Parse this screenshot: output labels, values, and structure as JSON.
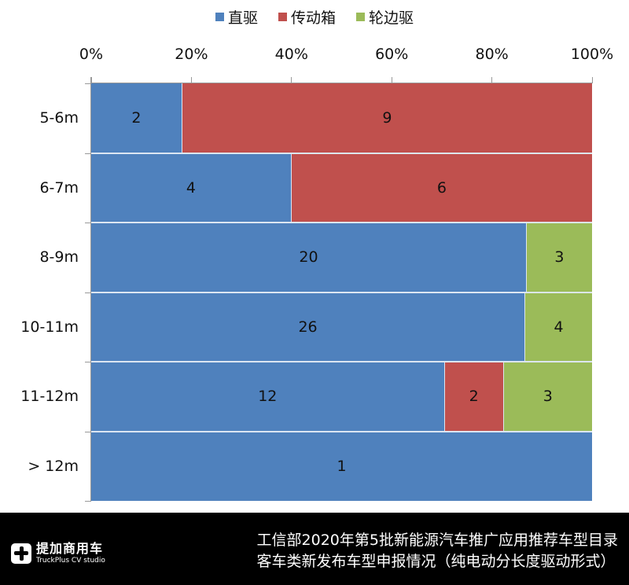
{
  "legend": [
    {
      "label": "直驱",
      "color": "#4f81bd"
    },
    {
      "label": "传动箱",
      "color": "#c0504d"
    },
    {
      "label": "轮边驱",
      "color": "#9bbb59"
    }
  ],
  "x_ticks": [
    "0%",
    "20%",
    "40%",
    "60%",
    "80%",
    "100%"
  ],
  "footer": {
    "logo_cn": "提加商用车",
    "logo_en": "TruckPlus CV studio",
    "title_line1": "工信部2020年第5批新能源汽车推广应用推荐车型目录",
    "title_line2": "客车类新发布车型申报情况（纯电动分长度驱动形式）"
  },
  "chart_data": {
    "type": "bar",
    "orientation": "horizontal",
    "stacking": "percent",
    "title": "工信部2020年第5批新能源汽车推广应用推荐车型目录 客车类新发布车型申报情况（纯电动分长度驱动形式）",
    "categories": [
      "5-6m",
      "6-7m",
      "8-9m",
      "10-11m",
      "11-12m",
      "> 12m"
    ],
    "series": [
      {
        "name": "直驱",
        "color": "#4f81bd",
        "values": [
          2,
          4,
          20,
          26,
          12,
          1
        ]
      },
      {
        "name": "传动箱",
        "color": "#c0504d",
        "values": [
          9,
          6,
          0,
          0,
          2,
          0
        ]
      },
      {
        "name": "轮边驱",
        "color": "#9bbb59",
        "values": [
          0,
          0,
          3,
          4,
          3,
          0
        ]
      }
    ],
    "xlabel": "",
    "ylabel": "",
    "x_ticks": [
      "0%",
      "20%",
      "40%",
      "60%",
      "80%",
      "100%"
    ],
    "xlim": [
      0,
      100
    ],
    "x_axis_position": "top",
    "legend_position": "top",
    "grid": false,
    "data_labels": true
  }
}
